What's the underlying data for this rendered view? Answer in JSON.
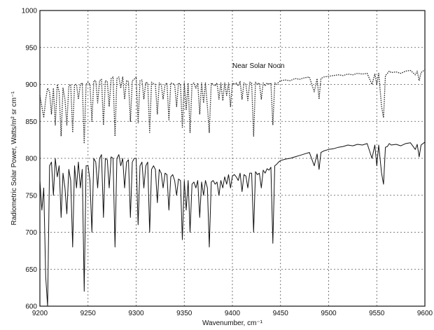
{
  "chart_data": {
    "type": "line",
    "title": "",
    "xlabel": "Wavenumber, cm⁻¹",
    "ylabel": "Radiometric Solar Power, Watts/m² sr cm⁻¹",
    "xlim": [
      9200,
      9600
    ],
    "ylim": [
      600,
      1000
    ],
    "xticks": [
      9200,
      9250,
      9300,
      9350,
      9400,
      9450,
      9500,
      9550,
      9600
    ],
    "yticks": [
      600,
      650,
      700,
      750,
      800,
      850,
      900,
      950,
      1000
    ],
    "grid": true,
    "annotations": [
      {
        "text": "Near Solar Noon",
        "x": 9400,
        "y": 925
      }
    ],
    "series": [
      {
        "style": "dotted",
        "color": "#222222",
        "x": [
          9200,
          9202,
          9204,
          9206,
          9208,
          9210,
          9212,
          9214,
          9216,
          9218,
          9220,
          9222,
          9224,
          9226,
          9228,
          9230,
          9232,
          9234,
          9236,
          9238,
          9240,
          9242,
          9244,
          9246,
          9248,
          9250,
          9252,
          9254,
          9256,
          9258,
          9260,
          9262,
          9264,
          9266,
          9268,
          9270,
          9272,
          9274,
          9276,
          9278,
          9280,
          9282,
          9284,
          9286,
          9288,
          9290,
          9292,
          9294,
          9296,
          9298,
          9300,
          9302,
          9304,
          9306,
          9308,
          9310,
          9312,
          9314,
          9316,
          9318,
          9320,
          9322,
          9324,
          9326,
          9328,
          9330,
          9332,
          9334,
          9336,
          9338,
          9340,
          9342,
          9344,
          9346,
          9348,
          9350,
          9352,
          9354,
          9356,
          9358,
          9360,
          9362,
          9364,
          9366,
          9368,
          9370,
          9372,
          9374,
          9376,
          9378,
          9380,
          9382,
          9384,
          9386,
          9388,
          9390,
          9392,
          9394,
          9396,
          9398,
          9400,
          9402,
          9404,
          9406,
          9408,
          9410,
          9412,
          9414,
          9416,
          9418,
          9420,
          9422,
          9424,
          9426,
          9428,
          9430,
          9432,
          9434,
          9436,
          9438,
          9440,
          9442,
          9444,
          9446,
          9448,
          9450,
          9455,
          9460,
          9465,
          9470,
          9475,
          9480,
          9485,
          9488,
          9490,
          9492,
          9495,
          9500,
          9505,
          9510,
          9515,
          9520,
          9525,
          9530,
          9535,
          9540,
          9545,
          9548,
          9550,
          9552,
          9555,
          9557,
          9559,
          9561,
          9563,
          9565,
          9570,
          9575,
          9580,
          9585,
          9590,
          9592,
          9594,
          9596,
          9600
        ],
        "y": [
          885,
          870,
          855,
          880,
          895,
          890,
          860,
          895,
          845,
          900,
          890,
          830,
          895,
          880,
          845,
          898,
          900,
          835,
          900,
          900,
          880,
          900,
          902,
          820,
          900,
          903,
          900,
          850,
          905,
          905,
          875,
          905,
          907,
          845,
          905,
          904,
          870,
          908,
          910,
          830,
          908,
          910,
          895,
          910,
          880,
          905,
          904,
          850,
          905,
          907,
          910,
          848,
          905,
          906,
          880,
          903,
          902,
          835,
          903,
          901,
          900,
          860,
          902,
          900,
          880,
          900,
          902,
          852,
          902,
          901,
          900,
          870,
          902,
          900,
          842,
          902,
          866,
          902,
          835,
          900,
          902,
          895,
          902,
          860,
          902,
          875,
          902,
          870,
          835,
          902,
          900,
          898,
          902,
          880,
          902,
          878,
          902,
          885,
          902,
          870,
          902,
          900,
          902,
          898,
          904,
          880,
          902,
          900,
          878,
          903,
          902,
          830,
          903,
          900,
          902,
          880,
          902,
          898,
          902,
          900,
          902,
          845,
          902,
          900,
          903,
          905,
          906,
          905,
          908,
          907,
          909,
          910,
          890,
          908,
          880,
          908,
          910,
          911,
          912,
          913,
          912,
          914,
          913,
          915,
          914,
          915,
          900,
          914,
          900,
          915,
          870,
          855,
          912,
          915,
          918,
          916,
          917,
          915,
          918,
          919,
          913,
          918,
          905,
          916,
          920
        ]
      },
      {
        "style": "solid",
        "color": "#111111",
        "x": [
          9200,
          9202,
          9204,
          9206,
          9208,
          9210,
          9212,
          9214,
          9216,
          9218,
          9220,
          9222,
          9224,
          9226,
          9228,
          9230,
          9232,
          9234,
          9236,
          9238,
          9240,
          9242,
          9244,
          9246,
          9248,
          9250,
          9252,
          9254,
          9256,
          9258,
          9260,
          9262,
          9264,
          9266,
          9268,
          9270,
          9272,
          9274,
          9276,
          9278,
          9280,
          9282,
          9284,
          9286,
          9288,
          9290,
          9292,
          9294,
          9296,
          9298,
          9300,
          9302,
          9304,
          9306,
          9308,
          9310,
          9312,
          9314,
          9316,
          9318,
          9320,
          9322,
          9324,
          9326,
          9328,
          9330,
          9332,
          9334,
          9336,
          9338,
          9340,
          9342,
          9344,
          9346,
          9348,
          9350,
          9352,
          9354,
          9356,
          9358,
          9360,
          9362,
          9364,
          9366,
          9368,
          9370,
          9372,
          9374,
          9376,
          9378,
          9380,
          9382,
          9384,
          9386,
          9388,
          9390,
          9392,
          9394,
          9396,
          9398,
          9400,
          9402,
          9404,
          9406,
          9408,
          9410,
          9412,
          9414,
          9416,
          9418,
          9420,
          9422,
          9424,
          9426,
          9428,
          9430,
          9432,
          9434,
          9436,
          9438,
          9440,
          9442,
          9444,
          9446,
          9448,
          9450,
          9455,
          9460,
          9465,
          9470,
          9475,
          9480,
          9485,
          9488,
          9490,
          9492,
          9495,
          9500,
          9505,
          9510,
          9515,
          9520,
          9525,
          9530,
          9535,
          9540,
          9545,
          9548,
          9550,
          9552,
          9555,
          9557,
          9559,
          9561,
          9563,
          9565,
          9570,
          9575,
          9580,
          9585,
          9590,
          9592,
          9594,
          9596,
          9600
        ],
        "y": [
          770,
          730,
          760,
          640,
          600,
          790,
          795,
          750,
          800,
          775,
          790,
          720,
          780,
          760,
          725,
          785,
          770,
          680,
          790,
          760,
          795,
          760,
          785,
          620,
          790,
          790,
          770,
          700,
          800,
          795,
          760,
          800,
          805,
          720,
          800,
          798,
          760,
          802,
          800,
          680,
          800,
          805,
          790,
          800,
          760,
          795,
          798,
          720,
          795,
          800,
          800,
          710,
          790,
          795,
          760,
          790,
          795,
          700,
          785,
          790,
          785,
          740,
          785,
          780,
          760,
          780,
          778,
          730,
          775,
          778,
          770,
          750,
          772,
          770,
          690,
          770,
          730,
          770,
          700,
          765,
          768,
          760,
          770,
          720,
          768,
          750,
          770,
          760,
          680,
          768,
          770,
          765,
          768,
          750,
          770,
          760,
          775,
          765,
          778,
          760,
          776,
          778,
          775,
          770,
          780,
          755,
          778,
          776,
          760,
          780,
          780,
          700,
          782,
          778,
          780,
          760,
          784,
          780,
          786,
          784,
          788,
          685,
          790,
          792,
          795,
          797,
          799,
          800,
          802,
          804,
          806,
          808,
          790,
          806,
          785,
          808,
          810,
          812,
          813,
          815,
          816,
          818,
          817,
          819,
          818,
          820,
          800,
          818,
          790,
          818,
          780,
          765,
          815,
          816,
          820,
          818,
          819,
          817,
          820,
          821,
          812,
          819,
          802,
          818,
          822
        ]
      }
    ]
  }
}
